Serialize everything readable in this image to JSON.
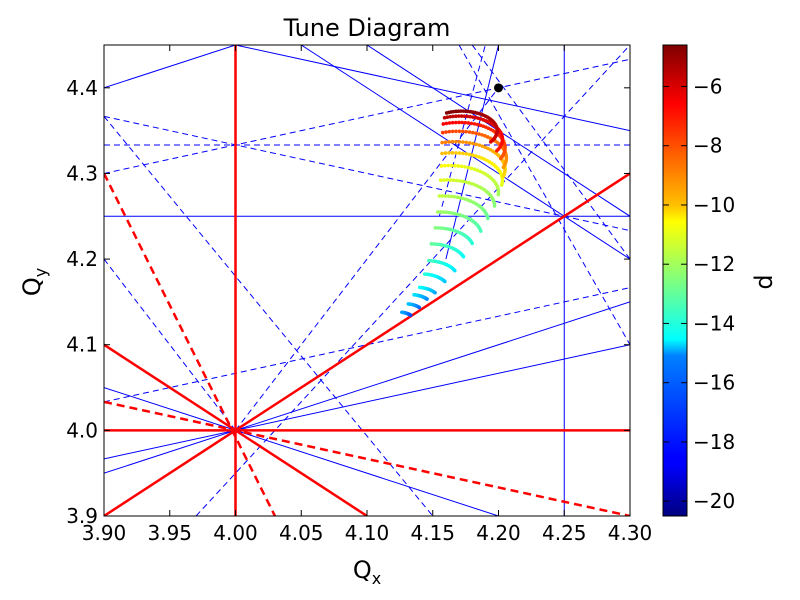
{
  "chart_data": {
    "type": "scatter",
    "title": "Tune Diagram",
    "xlabel_main": "Q",
    "xlabel_sub": "x",
    "ylabel_main": "Q",
    "ylabel_sub": "y",
    "xlim": [
      3.9,
      4.3
    ],
    "ylim": [
      3.9,
      4.45
    ],
    "xticks": [
      "3.90",
      "3.95",
      "4.00",
      "4.05",
      "4.10",
      "4.15",
      "4.20",
      "4.25",
      "4.30"
    ],
    "xtick_values": [
      3.9,
      3.95,
      4.0,
      4.05,
      4.1,
      4.15,
      4.2,
      4.25,
      4.3
    ],
    "yticks": [
      "3.9",
      "4.0",
      "4.1",
      "4.2",
      "4.3",
      "4.4"
    ],
    "ytick_values": [
      3.9,
      4.0,
      4.1,
      4.2,
      4.3,
      4.4
    ],
    "grid": false,
    "colorbar": {
      "label": "d",
      "range": [
        -20.5,
        -4.6
      ],
      "ticks": [
        "−6",
        "−8",
        "−10",
        "−12",
        "−14",
        "−16",
        "−18",
        "−20"
      ],
      "tick_values": [
        -6,
        -8,
        -10,
        -12,
        -14,
        -16,
        -18,
        -20
      ],
      "colormap": "jet"
    },
    "marker_point": {
      "x": 4.2,
      "y": 4.4,
      "color": "#000000"
    },
    "resonance_lines": {
      "red_solid": [
        [
          [
            4.0,
            3.9
          ],
          [
            4.0,
            4.45
          ]
        ],
        [
          [
            3.9,
            4.0
          ],
          [
            4.3,
            4.0
          ]
        ],
        [
          [
            3.9,
            3.9
          ],
          [
            4.3,
            4.3
          ]
        ],
        [
          [
            3.9,
            4.1
          ],
          [
            4.1,
            3.9
          ]
        ]
      ],
      "red_dashed": [
        [
          [
            3.9,
            4.3
          ],
          [
            4.03,
            3.9
          ]
        ],
        [
          [
            3.9,
            4.0333
          ],
          [
            4.3,
            3.9
          ]
        ]
      ],
      "blue_solid": [
        [
          [
            4.25,
            3.9
          ],
          [
            4.25,
            4.45
          ]
        ],
        [
          [
            3.9,
            4.25
          ],
          [
            4.3,
            4.25
          ]
        ],
        [
          [
            3.9,
            4.4
          ],
          [
            4.0,
            4.45
          ]
        ],
        [
          [
            4.0,
            4.45
          ],
          [
            4.3,
            4.35
          ]
        ],
        [
          [
            3.9,
            3.95
          ],
          [
            4.3,
            4.15
          ]
        ],
        [
          [
            3.9,
            4.05
          ],
          [
            4.3,
            3.85
          ]
        ],
        [
          [
            3.9,
            3.9667
          ],
          [
            4.3,
            4.1
          ]
        ],
        [
          [
            4.05,
            4.45
          ],
          [
            4.3,
            4.2
          ]
        ],
        [
          [
            4.1,
            4.45
          ],
          [
            4.3,
            4.25
          ]
        ],
        [
          [
            4.16,
            4.2
          ],
          [
            4.2,
            4.45
          ]
        ]
      ],
      "blue_dashed": [
        [
          [
            3.9,
            4.3333
          ],
          [
            4.3,
            4.3333
          ]
        ],
        [
          [
            3.9,
            4.3
          ],
          [
            4.3,
            4.4333
          ]
        ],
        [
          [
            3.9,
            4.3667
          ],
          [
            4.3,
            4.2333
          ]
        ],
        [
          [
            3.9,
            4.2
          ],
          [
            4.0,
            4.0
          ]
        ],
        [
          [
            3.9,
            4.0333
          ],
          [
            4.3,
            4.1667
          ]
        ],
        [
          [
            3.97,
            3.9
          ],
          [
            4.3,
            4.45
          ]
        ],
        [
          [
            3.9,
            4.3667
          ],
          [
            4.15,
            3.9
          ]
        ],
        [
          [
            4.0,
            4.0
          ],
          [
            4.2,
            4.4
          ]
        ],
        [
          [
            4.155,
            4.25
          ],
          [
            4.19,
            4.45
          ]
        ],
        [
          [
            4.17,
            4.45
          ],
          [
            4.3,
            4.1
          ]
        ],
        [
          [
            4.18,
            4.45
          ],
          [
            4.3,
            4.2
          ]
        ],
        [
          [
            4.25,
            4.25
          ],
          [
            4.3,
            4.3
          ]
        ],
        [
          [
            4.0,
            4.0
          ],
          [
            4.0,
            4.0
          ]
        ]
      ]
    },
    "scatter_arcs": [
      {
        "cx": 4.124,
        "cy": 4.128,
        "theta0": 40,
        "theta1": 78,
        "r": 0.012,
        "d": -17.5
      },
      {
        "cx": 4.129,
        "cy": 4.136,
        "theta0": 40,
        "theta1": 80,
        "r": 0.014,
        "d": -17.0
      },
      {
        "cx": 4.133,
        "cy": 4.145,
        "theta0": 38,
        "theta1": 80,
        "r": 0.016,
        "d": -16.5
      },
      {
        "cx": 4.137,
        "cy": 4.152,
        "theta0": 35,
        "theta1": 80,
        "r": 0.018,
        "d": -16.0
      },
      {
        "cx": 4.141,
        "cy": 4.165,
        "theta0": 30,
        "theta1": 82,
        "r": 0.021,
        "d": -15.5
      },
      {
        "cx": 4.145,
        "cy": 4.178,
        "theta0": 25,
        "theta1": 85,
        "r": 0.024,
        "d": -15.0
      },
      {
        "cx": 4.148,
        "cy": 4.195,
        "theta0": 20,
        "theta1": 88,
        "r": 0.027,
        "d": -14.5
      },
      {
        "cx": 4.152,
        "cy": 4.212,
        "theta0": 15,
        "theta1": 90,
        "r": 0.029,
        "d": -14.0
      },
      {
        "cx": 4.155,
        "cy": 4.228,
        "theta0": 10,
        "theta1": 92,
        "r": 0.032,
        "d": -13.5
      },
      {
        "cx": 4.158,
        "cy": 4.245,
        "theta0": 5,
        "theta1": 95,
        "r": 0.034,
        "d": -13.0
      },
      {
        "cx": 4.161,
        "cy": 4.262,
        "theta0": 0,
        "theta1": 98,
        "r": 0.036,
        "d": -12.5
      },
      {
        "cx": 4.163,
        "cy": 4.278,
        "theta0": -5,
        "theta1": 100,
        "r": 0.037,
        "d": -12.0
      },
      {
        "cx": 4.165,
        "cy": 4.292,
        "theta0": -10,
        "theta1": 102,
        "r": 0.038,
        "d": -11.0
      },
      {
        "cx": 4.167,
        "cy": 4.305,
        "theta0": -15,
        "theta1": 105,
        "r": 0.038,
        "d": -10.0
      },
      {
        "cx": 4.169,
        "cy": 4.318,
        "theta0": -20,
        "theta1": 108,
        "r": 0.037,
        "d": -9.0
      },
      {
        "cx": 4.17,
        "cy": 4.33,
        "theta0": -25,
        "theta1": 110,
        "r": 0.035,
        "d": -8.0
      },
      {
        "cx": 4.171,
        "cy": 4.34,
        "theta0": -30,
        "theta1": 112,
        "r": 0.032,
        "d": -7.0
      },
      {
        "cx": 4.172,
        "cy": 4.35,
        "theta0": -35,
        "theta1": 115,
        "r": 0.027,
        "d": -6.0
      }
    ]
  }
}
